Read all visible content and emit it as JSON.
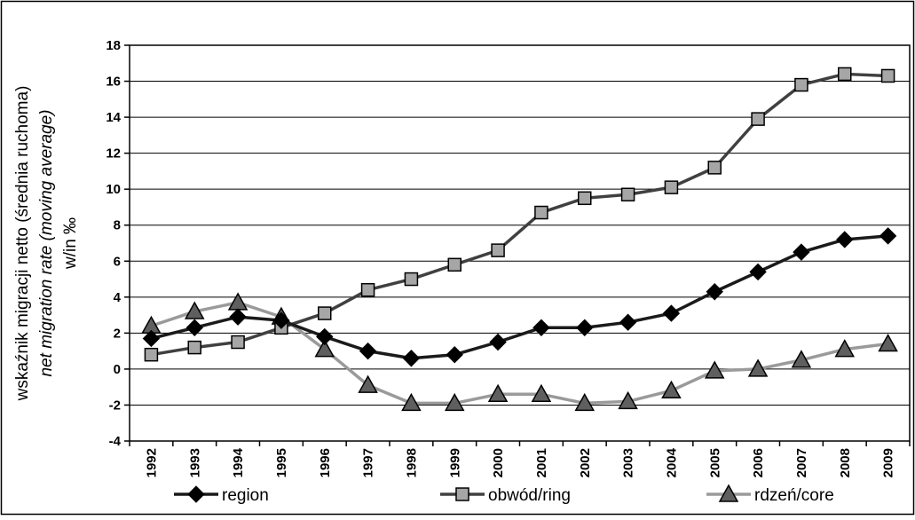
{
  "chart_data": {
    "type": "line",
    "ylabel_lines": [
      "wskaźnik migracji netto (średnia ruchoma)",
      "net migration rate (moving average)",
      "w/in ‰"
    ],
    "categories": [
      "1992",
      "1993",
      "1994",
      "1995",
      "1996",
      "1997",
      "1998",
      "1999",
      "2000",
      "2001",
      "2002",
      "2003",
      "2004",
      "2005",
      "2006",
      "2007",
      "2008",
      "2009"
    ],
    "ylim": [
      -4,
      18
    ],
    "yticks": [
      -4,
      -2,
      0,
      2,
      4,
      6,
      8,
      10,
      12,
      14,
      16,
      18
    ],
    "grid": true,
    "legend_position": "bottom",
    "series": [
      {
        "name": "region",
        "marker": "diamond",
        "line_color": "#1a1a1a",
        "marker_fill": "#000000",
        "values": [
          1.7,
          2.3,
          2.9,
          2.7,
          1.8,
          1.0,
          0.6,
          0.8,
          1.5,
          2.3,
          2.3,
          2.6,
          3.1,
          4.3,
          5.4,
          6.5,
          7.2,
          7.4
        ]
      },
      {
        "name": "obwód/ring",
        "marker": "square",
        "line_color": "#404040",
        "marker_fill": "#a6a6a6",
        "values": [
          0.8,
          1.2,
          1.5,
          2.3,
          3.1,
          4.4,
          5.0,
          5.8,
          6.6,
          8.7,
          9.5,
          9.7,
          10.1,
          11.2,
          13.9,
          15.8,
          16.4,
          16.3
        ]
      },
      {
        "name": "rdzeń/core",
        "marker": "triangle",
        "line_color": "#9a9a9a",
        "marker_fill": "#5f5f5f",
        "values": [
          2.4,
          3.2,
          3.7,
          2.9,
          1.1,
          -0.9,
          -1.9,
          -1.9,
          -1.4,
          -1.4,
          -1.9,
          -1.8,
          -1.2,
          -0.1,
          0.0,
          0.5,
          1.1,
          1.4
        ]
      }
    ]
  }
}
